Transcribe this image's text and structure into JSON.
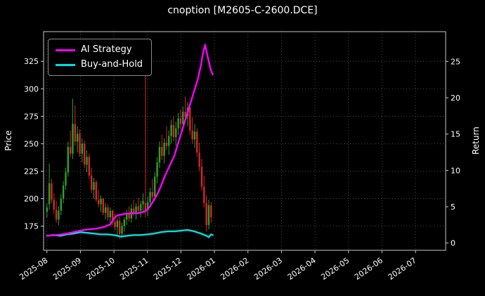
{
  "chart_data": {
    "type": "candlestick+line",
    "title": "cnoption [M2605-C-2600.DCE]",
    "ylabel_left": "Price",
    "ylabel_right": "Return",
    "legend_position": "upper-left",
    "grid": "dotted",
    "background": "#000000",
    "text_color": "#ffffff",
    "spine_color": "#c8c8c8",
    "grid_color": "#5a5a5a",
    "x_tick_labels": [
      "2025-08",
      "2025-09",
      "2025-10",
      "2025-11",
      "2025-12",
      "2026-01",
      "2026-02",
      "2026-03",
      "2026-04",
      "2026-05",
      "2026-06",
      "2026-07"
    ],
    "x_range_months": [
      -0.1,
      11.9
    ],
    "price_ticks": [
      175,
      200,
      225,
      250,
      275,
      300,
      325
    ],
    "price_range": [
      153,
      352
    ],
    "return_ticks": [
      0,
      5,
      10,
      15,
      20,
      25
    ],
    "return_range": [
      -1,
      29.1
    ],
    "candle_colors": {
      "up": "#28a428",
      "down": "#d62728"
    },
    "candles": [
      [
        0.0,
        188,
        196,
        183,
        192
      ],
      [
        0.07,
        195,
        232,
        190,
        214
      ],
      [
        0.14,
        214,
        218,
        196,
        199
      ],
      [
        0.21,
        199,
        205,
        186,
        190
      ],
      [
        0.28,
        190,
        198,
        178,
        181
      ],
      [
        0.35,
        181,
        193,
        176,
        189
      ],
      [
        0.42,
        189,
        204,
        185,
        200
      ],
      [
        0.49,
        200,
        216,
        196,
        212
      ],
      [
        0.56,
        212,
        228,
        208,
        224
      ],
      [
        0.63,
        224,
        252,
        220,
        247
      ],
      [
        0.7,
        247,
        262,
        238,
        241
      ],
      [
        0.77,
        241,
        291,
        236,
        268
      ],
      [
        0.84,
        268,
        285,
        248,
        252
      ],
      [
        0.91,
        252,
        266,
        242,
        259
      ],
      [
        0.98,
        259,
        263,
        238,
        241
      ],
      [
        1.05,
        241,
        255,
        233,
        250
      ],
      [
        1.12,
        250,
        253,
        228,
        231
      ],
      [
        1.19,
        231,
        244,
        224,
        238
      ],
      [
        1.26,
        238,
        241,
        218,
        221
      ],
      [
        1.33,
        221,
        228,
        205,
        208
      ],
      [
        1.4,
        208,
        219,
        200,
        215
      ],
      [
        1.47,
        215,
        217,
        197,
        199
      ],
      [
        1.54,
        199,
        208,
        192,
        195
      ],
      [
        1.61,
        195,
        203,
        188,
        200
      ],
      [
        1.68,
        200,
        201,
        185,
        187
      ],
      [
        1.75,
        187,
        196,
        181,
        192
      ],
      [
        1.82,
        192,
        195,
        180,
        183
      ],
      [
        1.89,
        183,
        192,
        178,
        189
      ],
      [
        1.96,
        189,
        190,
        176,
        179
      ],
      [
        2.03,
        179,
        186,
        171,
        174
      ],
      [
        2.1,
        174,
        182,
        166,
        180
      ],
      [
        2.17,
        180,
        184,
        163,
        168
      ],
      [
        2.24,
        168,
        178,
        164,
        175
      ],
      [
        2.31,
        175,
        183,
        170,
        181
      ],
      [
        2.38,
        181,
        190,
        176,
        186
      ],
      [
        2.45,
        186,
        193,
        179,
        182
      ],
      [
        2.52,
        182,
        195,
        178,
        191
      ],
      [
        2.59,
        191,
        199,
        184,
        187
      ],
      [
        2.66,
        187,
        196,
        181,
        193
      ],
      [
        2.73,
        193,
        201,
        186,
        189
      ],
      [
        2.8,
        189,
        198,
        183,
        195
      ],
      [
        2.87,
        195,
        205,
        188,
        198
      ],
      [
        2.94,
        196,
        320,
        183,
        188
      ],
      [
        3.01,
        190,
        202,
        184,
        197
      ],
      [
        3.08,
        197,
        210,
        192,
        206
      ],
      [
        3.15,
        206,
        218,
        199,
        202
      ],
      [
        3.22,
        202,
        224,
        198,
        220
      ],
      [
        3.29,
        220,
        238,
        214,
        233
      ],
      [
        3.36,
        233,
        252,
        228,
        247
      ],
      [
        3.43,
        247,
        258,
        235,
        239
      ],
      [
        3.5,
        239,
        255,
        232,
        251
      ],
      [
        3.57,
        251,
        266,
        244,
        248
      ],
      [
        3.64,
        248,
        262,
        240,
        257
      ],
      [
        3.71,
        257,
        272,
        250,
        267
      ],
      [
        3.78,
        267,
        275,
        252,
        256
      ],
      [
        3.85,
        256,
        270,
        248,
        264
      ],
      [
        3.92,
        264,
        278,
        258,
        273
      ],
      [
        3.99,
        273,
        281,
        263,
        268
      ],
      [
        4.06,
        268,
        284,
        262,
        279
      ],
      [
        4.13,
        279,
        293,
        270,
        275
      ],
      [
        4.2,
        275,
        288,
        266,
        283
      ],
      [
        4.27,
        283,
        286,
        258,
        262
      ],
      [
        4.34,
        262,
        274,
        250,
        254
      ],
      [
        4.41,
        254,
        268,
        246,
        261
      ],
      [
        4.48,
        261,
        264,
        238,
        242
      ],
      [
        4.55,
        242,
        251,
        225,
        229
      ],
      [
        4.62,
        229,
        236,
        207,
        211
      ],
      [
        4.69,
        211,
        221,
        192,
        196
      ],
      [
        4.76,
        196,
        203,
        170,
        176
      ],
      [
        4.83,
        176,
        199,
        172,
        194
      ],
      [
        4.9,
        194,
        197,
        178,
        183
      ]
    ],
    "series": [
      {
        "name": "AI Strategy",
        "color": "#ff00ff",
        "axis": "return",
        "points": [
          [
            0.0,
            1.0
          ],
          [
            0.3,
            1.1
          ],
          [
            0.6,
            1.3
          ],
          [
            0.9,
            1.6
          ],
          [
            1.1,
            1.8
          ],
          [
            1.3,
            1.9
          ],
          [
            1.5,
            2.0
          ],
          [
            1.7,
            2.2
          ],
          [
            1.9,
            2.6
          ],
          [
            2.0,
            3.4
          ],
          [
            2.1,
            3.8
          ],
          [
            2.3,
            4.0
          ],
          [
            2.5,
            4.1
          ],
          [
            2.7,
            4.1
          ],
          [
            2.9,
            4.3
          ],
          [
            3.0,
            4.6
          ],
          [
            3.1,
            5.2
          ],
          [
            3.2,
            6.0
          ],
          [
            3.3,
            6.8
          ],
          [
            3.4,
            7.8
          ],
          [
            3.5,
            9.0
          ],
          [
            3.6,
            10.0
          ],
          [
            3.7,
            11.0
          ],
          [
            3.8,
            12.0
          ],
          [
            3.9,
            13.5
          ],
          [
            4.0,
            15.0
          ],
          [
            4.1,
            16.5
          ],
          [
            4.2,
            18.0
          ],
          [
            4.3,
            19.5
          ],
          [
            4.4,
            21.0
          ],
          [
            4.5,
            22.5
          ],
          [
            4.6,
            24.5
          ],
          [
            4.65,
            26.0
          ],
          [
            4.72,
            27.3
          ],
          [
            4.78,
            26.0
          ],
          [
            4.83,
            25.0
          ],
          [
            4.89,
            23.8
          ],
          [
            4.95,
            23.2
          ]
        ]
      },
      {
        "name": "Buy-and-Hold",
        "color": "#00e0e0",
        "axis": "return",
        "points": [
          [
            0.0,
            1.0
          ],
          [
            0.2,
            1.1
          ],
          [
            0.4,
            1.0
          ],
          [
            0.6,
            1.2
          ],
          [
            0.8,
            1.3
          ],
          [
            1.0,
            1.5
          ],
          [
            1.2,
            1.4
          ],
          [
            1.4,
            1.3
          ],
          [
            1.6,
            1.2
          ],
          [
            1.8,
            1.2
          ],
          [
            2.0,
            1.1
          ],
          [
            2.2,
            0.9
          ],
          [
            2.4,
            1.0
          ],
          [
            2.6,
            1.1
          ],
          [
            2.8,
            1.1
          ],
          [
            3.0,
            1.2
          ],
          [
            3.2,
            1.3
          ],
          [
            3.4,
            1.5
          ],
          [
            3.6,
            1.6
          ],
          [
            3.8,
            1.6
          ],
          [
            4.0,
            1.7
          ],
          [
            4.2,
            1.8
          ],
          [
            4.4,
            1.6
          ],
          [
            4.6,
            1.3
          ],
          [
            4.76,
            1.0
          ],
          [
            4.83,
            0.8
          ],
          [
            4.9,
            1.2
          ],
          [
            4.95,
            1.1
          ]
        ]
      }
    ]
  }
}
